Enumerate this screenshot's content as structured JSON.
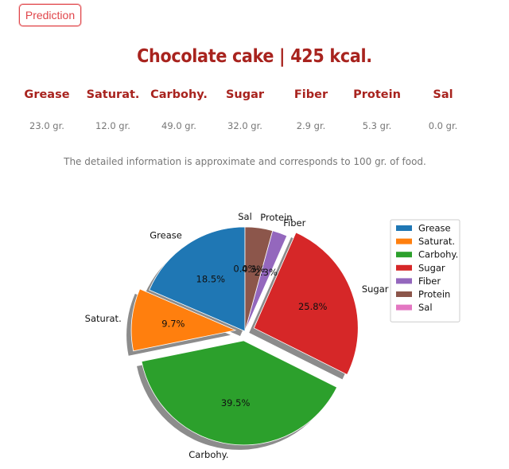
{
  "button": {
    "prediction_label": "Prediction"
  },
  "header": {
    "title": "Chocolate cake | 425 kcal."
  },
  "nutrients": [
    {
      "label": "Grease",
      "value": "23.0 gr."
    },
    {
      "label": "Saturat.",
      "value": "12.0 gr."
    },
    {
      "label": "Carbohy.",
      "value": "49.0 gr."
    },
    {
      "label": "Sugar",
      "value": "32.0 gr."
    },
    {
      "label": "Fiber",
      "value": "2.9 gr."
    },
    {
      "label": "Protein",
      "value": "5.3 gr."
    },
    {
      "label": "Sal",
      "value": "0.0 gr."
    }
  ],
  "note": "The detailed information is approximate and corresponds to 100 gr. of food.",
  "chart_data": {
    "type": "pie",
    "title": "",
    "categories": [
      "Grease",
      "Saturat.",
      "Carbohy.",
      "Sugar",
      "Fiber",
      "Protein",
      "Sal"
    ],
    "values": [
      23.0,
      12.0,
      49.0,
      32.0,
      2.9,
      5.3,
      0.0
    ],
    "percent_labels": [
      "18.5%",
      "9.7%",
      "39.5%",
      "25.8%",
      "2.3%",
      "4.3%",
      "0.0%"
    ],
    "colors": [
      "#1f77b4",
      "#ff7f0e",
      "#2ca02c",
      "#d62728",
      "#9467bd",
      "#8c564b",
      "#e377c2"
    ],
    "exploded": [
      "Saturat.",
      "Carbohy.",
      "Sugar"
    ],
    "shadow": true,
    "start_angle_deg": 90,
    "legend_position": "top-right"
  }
}
